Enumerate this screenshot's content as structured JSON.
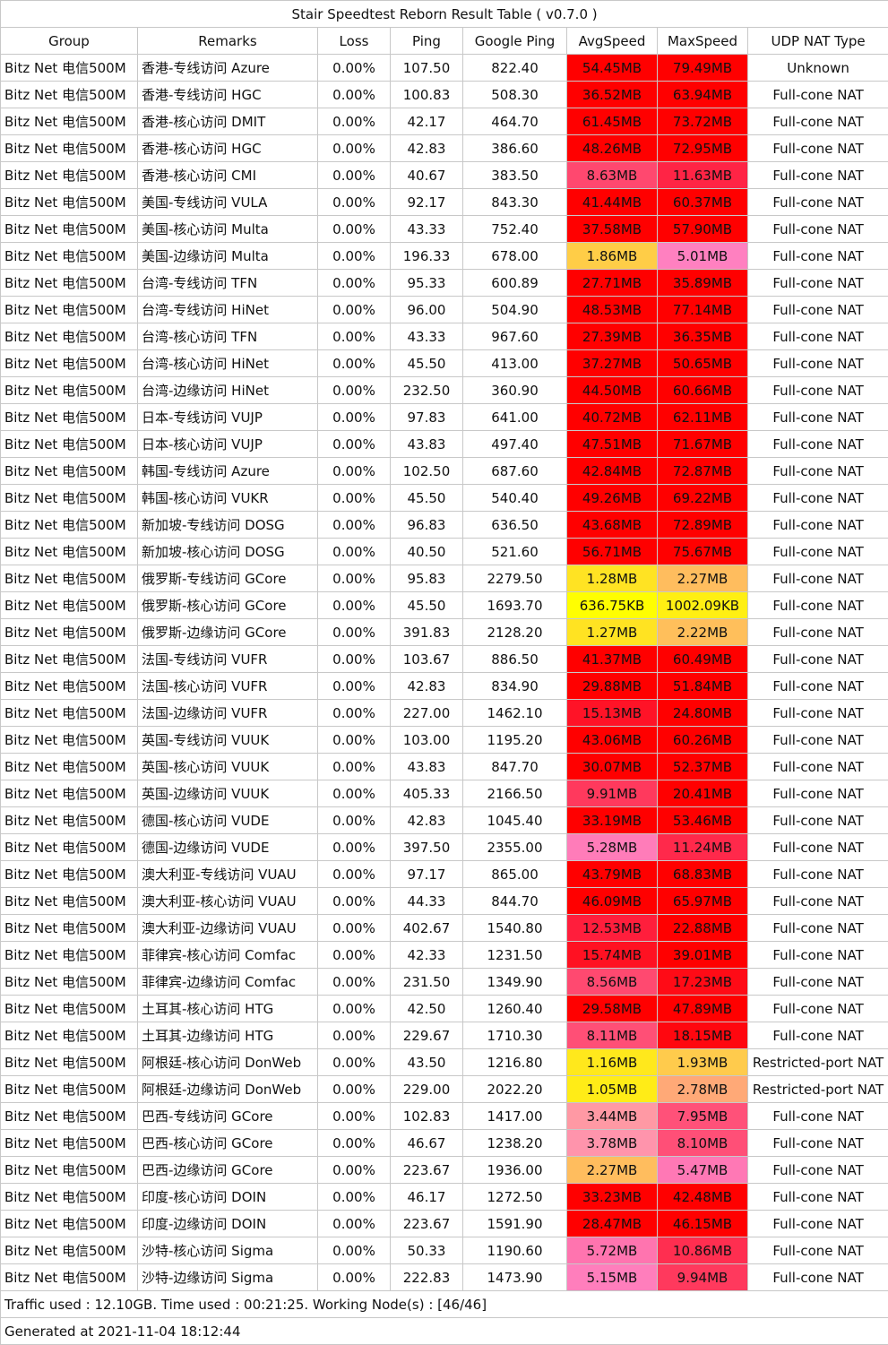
{
  "title": "Stair Speedtest Reborn Result Table ( v0.7.0 )",
  "headers": [
    "Group",
    "Remarks",
    "Loss",
    "Ping",
    "Google Ping",
    "AvgSpeed",
    "MaxSpeed",
    "UDP NAT Type"
  ],
  "rows": [
    [
      "Bitz Net 电信500M",
      "香港-专线访问 Azure",
      "0.00%",
      "107.50",
      "822.40",
      "54.45MB",
      "79.49MB",
      "Unknown"
    ],
    [
      "Bitz Net 电信500M",
      "香港-专线访问 HGC",
      "0.00%",
      "100.83",
      "508.30",
      "36.52MB",
      "63.94MB",
      "Full-cone NAT"
    ],
    [
      "Bitz Net 电信500M",
      "香港-核心访问 DMIT",
      "0.00%",
      "42.17",
      "464.70",
      "61.45MB",
      "73.72MB",
      "Full-cone NAT"
    ],
    [
      "Bitz Net 电信500M",
      "香港-核心访问 HGC",
      "0.00%",
      "42.83",
      "386.60",
      "48.26MB",
      "72.95MB",
      "Full-cone NAT"
    ],
    [
      "Bitz Net 电信500M",
      "香港-核心访问 CMI",
      "0.00%",
      "40.67",
      "383.50",
      "8.63MB",
      "11.63MB",
      "Full-cone NAT"
    ],
    [
      "Bitz Net 电信500M",
      "美国-专线访问 VULA",
      "0.00%",
      "92.17",
      "843.30",
      "41.44MB",
      "60.37MB",
      "Full-cone NAT"
    ],
    [
      "Bitz Net 电信500M",
      "美国-核心访问 Multa",
      "0.00%",
      "43.33",
      "752.40",
      "37.58MB",
      "57.90MB",
      "Full-cone NAT"
    ],
    [
      "Bitz Net 电信500M",
      "美国-边缘访问 Multa",
      "0.00%",
      "196.33",
      "678.00",
      "1.86MB",
      "5.01MB",
      "Full-cone NAT"
    ],
    [
      "Bitz Net 电信500M",
      "台湾-专线访问 TFN",
      "0.00%",
      "95.33",
      "600.89",
      "27.71MB",
      "35.89MB",
      "Full-cone NAT"
    ],
    [
      "Bitz Net 电信500M",
      "台湾-专线访问 HiNet",
      "0.00%",
      "96.00",
      "504.90",
      "48.53MB",
      "77.14MB",
      "Full-cone NAT"
    ],
    [
      "Bitz Net 电信500M",
      "台湾-核心访问 TFN",
      "0.00%",
      "43.33",
      "967.60",
      "27.39MB",
      "36.35MB",
      "Full-cone NAT"
    ],
    [
      "Bitz Net 电信500M",
      "台湾-核心访问 HiNet",
      "0.00%",
      "45.50",
      "413.00",
      "37.27MB",
      "50.65MB",
      "Full-cone NAT"
    ],
    [
      "Bitz Net 电信500M",
      "台湾-边缘访问 HiNet",
      "0.00%",
      "232.50",
      "360.90",
      "44.50MB",
      "60.66MB",
      "Full-cone NAT"
    ],
    [
      "Bitz Net 电信500M",
      "日本-专线访问 VUJP",
      "0.00%",
      "97.83",
      "641.00",
      "40.72MB",
      "62.11MB",
      "Full-cone NAT"
    ],
    [
      "Bitz Net 电信500M",
      "日本-核心访问 VUJP",
      "0.00%",
      "43.83",
      "497.40",
      "47.51MB",
      "71.67MB",
      "Full-cone NAT"
    ],
    [
      "Bitz Net 电信500M",
      "韩国-专线访问 Azure",
      "0.00%",
      "102.50",
      "687.60",
      "42.84MB",
      "72.87MB",
      "Full-cone NAT"
    ],
    [
      "Bitz Net 电信500M",
      "韩国-核心访问 VUKR",
      "0.00%",
      "45.50",
      "540.40",
      "49.26MB",
      "69.22MB",
      "Full-cone NAT"
    ],
    [
      "Bitz Net 电信500M",
      "新加坡-专线访问 DOSG",
      "0.00%",
      "96.83",
      "636.50",
      "43.68MB",
      "72.89MB",
      "Full-cone NAT"
    ],
    [
      "Bitz Net 电信500M",
      "新加坡-核心访问 DOSG",
      "0.00%",
      "40.50",
      "521.60",
      "56.71MB",
      "75.67MB",
      "Full-cone NAT"
    ],
    [
      "Bitz Net 电信500M",
      "俄罗斯-专线访问 GCore",
      "0.00%",
      "95.83",
      "2279.50",
      "1.28MB",
      "2.27MB",
      "Full-cone NAT"
    ],
    [
      "Bitz Net 电信500M",
      "俄罗斯-核心访问 GCore",
      "0.00%",
      "45.50",
      "1693.70",
      "636.75KB",
      "1002.09KB",
      "Full-cone NAT"
    ],
    [
      "Bitz Net 电信500M",
      "俄罗斯-边缘访问 GCore",
      "0.00%",
      "391.83",
      "2128.20",
      "1.27MB",
      "2.22MB",
      "Full-cone NAT"
    ],
    [
      "Bitz Net 电信500M",
      "法国-专线访问 VUFR",
      "0.00%",
      "103.67",
      "886.50",
      "41.37MB",
      "60.49MB",
      "Full-cone NAT"
    ],
    [
      "Bitz Net 电信500M",
      "法国-核心访问 VUFR",
      "0.00%",
      "42.83",
      "834.90",
      "29.88MB",
      "51.84MB",
      "Full-cone NAT"
    ],
    [
      "Bitz Net 电信500M",
      "法国-边缘访问 VUFR",
      "0.00%",
      "227.00",
      "1462.10",
      "15.13MB",
      "24.80MB",
      "Full-cone NAT"
    ],
    [
      "Bitz Net 电信500M",
      "英国-专线访问 VUUK",
      "0.00%",
      "103.00",
      "1195.20",
      "43.06MB",
      "60.26MB",
      "Full-cone NAT"
    ],
    [
      "Bitz Net 电信500M",
      "英国-核心访问 VUUK",
      "0.00%",
      "43.83",
      "847.70",
      "30.07MB",
      "52.37MB",
      "Full-cone NAT"
    ],
    [
      "Bitz Net 电信500M",
      "英国-边缘访问 VUUK",
      "0.00%",
      "405.33",
      "2166.50",
      "9.91MB",
      "20.41MB",
      "Full-cone NAT"
    ],
    [
      "Bitz Net 电信500M",
      "德国-核心访问 VUDE",
      "0.00%",
      "42.83",
      "1045.40",
      "33.19MB",
      "53.46MB",
      "Full-cone NAT"
    ],
    [
      "Bitz Net 电信500M",
      "德国-边缘访问 VUDE",
      "0.00%",
      "397.50",
      "2355.00",
      "5.28MB",
      "11.24MB",
      "Full-cone NAT"
    ],
    [
      "Bitz Net 电信500M",
      "澳大利亚-专线访问 VUAU",
      "0.00%",
      "97.17",
      "865.00",
      "43.79MB",
      "68.83MB",
      "Full-cone NAT"
    ],
    [
      "Bitz Net 电信500M",
      "澳大利亚-核心访问 VUAU",
      "0.00%",
      "44.33",
      "844.70",
      "46.09MB",
      "65.97MB",
      "Full-cone NAT"
    ],
    [
      "Bitz Net 电信500M",
      "澳大利亚-边缘访问 VUAU",
      "0.00%",
      "402.67",
      "1540.80",
      "12.53MB",
      "22.88MB",
      "Full-cone NAT"
    ],
    [
      "Bitz Net 电信500M",
      "菲律宾-核心访问 Comfac",
      "0.00%",
      "42.33",
      "1231.50",
      "15.74MB",
      "39.01MB",
      "Full-cone NAT"
    ],
    [
      "Bitz Net 电信500M",
      "菲律宾-边缘访问 Comfac",
      "0.00%",
      "231.50",
      "1349.90",
      "8.56MB",
      "17.23MB",
      "Full-cone NAT"
    ],
    [
      "Bitz Net 电信500M",
      "土耳其-核心访问 HTG",
      "0.00%",
      "42.50",
      "1260.40",
      "29.58MB",
      "47.89MB",
      "Full-cone NAT"
    ],
    [
      "Bitz Net 电信500M",
      "土耳其-边缘访问 HTG",
      "0.00%",
      "229.67",
      "1710.30",
      "8.11MB",
      "18.15MB",
      "Full-cone NAT"
    ],
    [
      "Bitz Net 电信500M",
      "阿根廷-核心访问 DonWeb",
      "0.00%",
      "43.50",
      "1216.80",
      "1.16MB",
      "1.93MB",
      "Restricted-port NAT"
    ],
    [
      "Bitz Net 电信500M",
      "阿根廷-边缘访问 DonWeb",
      "0.00%",
      "229.00",
      "2022.20",
      "1.05MB",
      "2.78MB",
      "Restricted-port NAT"
    ],
    [
      "Bitz Net 电信500M",
      "巴西-专线访问 GCore",
      "0.00%",
      "102.83",
      "1417.00",
      "3.44MB",
      "7.95MB",
      "Full-cone NAT"
    ],
    [
      "Bitz Net 电信500M",
      "巴西-核心访问 GCore",
      "0.00%",
      "46.67",
      "1238.20",
      "3.78MB",
      "8.10MB",
      "Full-cone NAT"
    ],
    [
      "Bitz Net 电信500M",
      "巴西-边缘访问 GCore",
      "0.00%",
      "223.67",
      "1936.00",
      "2.27MB",
      "5.47MB",
      "Full-cone NAT"
    ],
    [
      "Bitz Net 电信500M",
      "印度-核心访问 DOIN",
      "0.00%",
      "46.17",
      "1272.50",
      "33.23MB",
      "42.48MB",
      "Full-cone NAT"
    ],
    [
      "Bitz Net 电信500M",
      "印度-边缘访问 DOIN",
      "0.00%",
      "223.67",
      "1591.90",
      "28.47MB",
      "46.15MB",
      "Full-cone NAT"
    ],
    [
      "Bitz Net 电信500M",
      "沙特-核心访问 Sigma",
      "0.00%",
      "50.33",
      "1190.60",
      "5.72MB",
      "10.86MB",
      "Full-cone NAT"
    ],
    [
      "Bitz Net 电信500M",
      "沙特-边缘访问 Sigma",
      "0.00%",
      "222.83",
      "1473.90",
      "5.15MB",
      "9.94MB",
      "Full-cone NAT"
    ]
  ],
  "footer": {
    "traffic": "Traffic used : 12.10GB. Time used : 00:21:25. Working Node(s) : [46/46]",
    "generated": "Generated at 2021-11-04 18:12:44"
  }
}
